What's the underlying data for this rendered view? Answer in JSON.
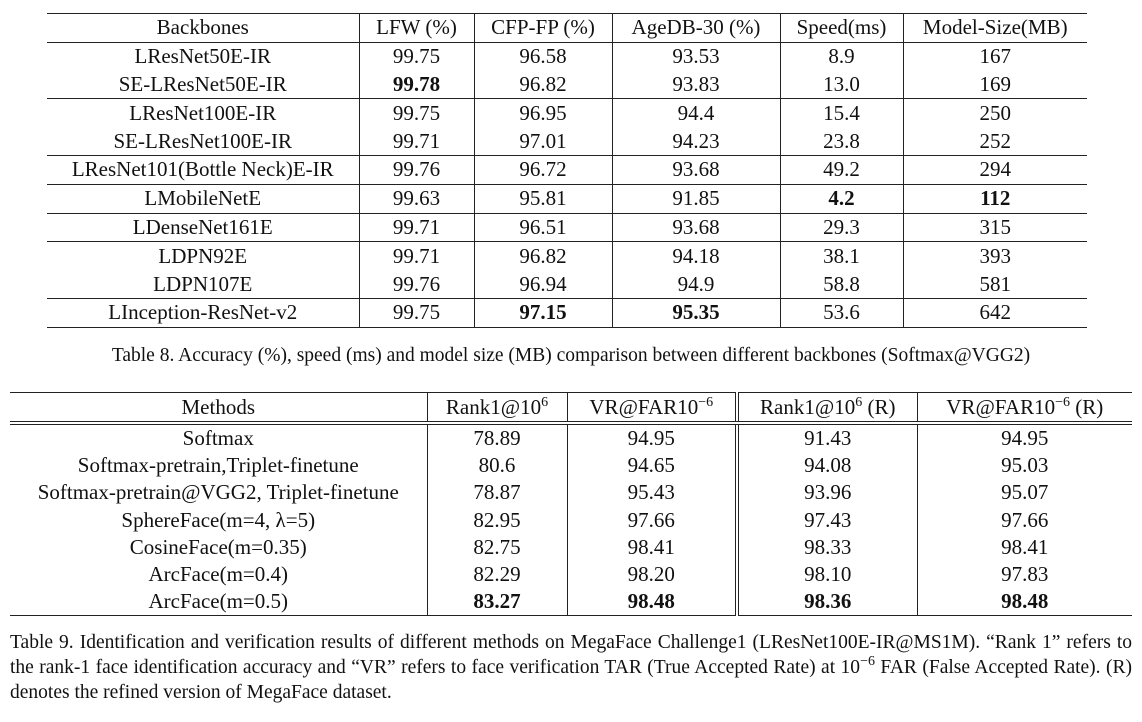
{
  "table8": {
    "header": [
      "Backbones",
      "LFW (%)",
      "CFP-FP (%)",
      "AgeDB-30 (%)",
      "Speed(ms)",
      "Model-Size(MB)"
    ],
    "rows": [
      {
        "cells": [
          "LResNet50E-IR",
          "99.75",
          "96.58",
          "93.53",
          "8.9",
          "167"
        ]
      },
      {
        "cells": [
          "SE-LResNet50E-IR",
          "99.78",
          "96.82",
          "93.83",
          "13.0",
          "169"
        ],
        "bold": [
          1
        ]
      },
      {
        "cells": [
          "LResNet100E-IR",
          "99.75",
          "96.95",
          "94.4",
          "15.4",
          "250"
        ]
      },
      {
        "cells": [
          "SE-LResNet100E-IR",
          "99.71",
          "97.01",
          "94.23",
          "23.8",
          "252"
        ]
      },
      {
        "cells": [
          "LResNet101(Bottle Neck)E-IR",
          "99.76",
          "96.72",
          "93.68",
          "49.2",
          "294"
        ]
      },
      {
        "cells": [
          "LMobileNetE",
          "99.63",
          "95.81",
          "91.85",
          "4.2",
          "112"
        ],
        "bold": [
          4,
          5
        ]
      },
      {
        "cells": [
          "LDenseNet161E",
          "99.71",
          "96.51",
          "93.68",
          "29.3",
          "315"
        ]
      },
      {
        "cells": [
          "LDPN92E",
          "99.71",
          "96.82",
          "94.18",
          "38.1",
          "393"
        ]
      },
      {
        "cells": [
          "LDPN107E",
          "99.76",
          "96.94",
          "94.9",
          "58.8",
          "581"
        ]
      },
      {
        "cells": [
          "LInception-ResNet-v2",
          "99.75",
          "97.15",
          "95.35",
          "53.6",
          "642"
        ],
        "bold": [
          2,
          3
        ]
      }
    ],
    "caption": "Table 8. Accuracy (%), speed (ms) and model size (MB) comparison between different backbones (Softmax@VGG2)"
  },
  "table9": {
    "header": [
      "Methods",
      {
        "text": "Rank1@10",
        "sup": "6"
      },
      {
        "text": "VR@FAR10",
        "sup": "−6"
      },
      {
        "text": "Rank1@10",
        "sup": "6",
        "after": " (R)"
      },
      {
        "text": "VR@FAR10",
        "sup": "−6",
        "after": " (R)"
      }
    ],
    "rows": [
      {
        "cells": [
          "Softmax",
          "78.89",
          "94.95",
          "91.43",
          "94.95"
        ]
      },
      {
        "cells": [
          "Softmax-pretrain,Triplet-finetune",
          "80.6",
          "94.65",
          "94.08",
          "95.03"
        ]
      },
      {
        "cells": [
          "Softmax-pretrain@VGG2, Triplet-finetune",
          "78.87",
          "95.43",
          "93.96",
          "95.07"
        ]
      },
      {
        "cells": [
          "SphereFace(m=4, λ=5)",
          "82.95",
          "97.66",
          "97.43",
          "97.66"
        ]
      },
      {
        "cells": [
          "CosineFace(m=0.35)",
          "82.75",
          "98.41",
          "98.33",
          "98.41"
        ]
      },
      {
        "cells": [
          "ArcFace(m=0.4)",
          "82.29",
          "98.20",
          "98.10",
          "97.83"
        ]
      },
      {
        "cells": [
          "ArcFace(m=0.5)",
          "83.27",
          "98.48",
          "98.36",
          "98.48"
        ],
        "bold": [
          1,
          2,
          3,
          4
        ]
      }
    ],
    "caption": {
      "text": "Table 9. Identification and verification results of different methods on MegaFace Challenge1 (LResNet100E-IR@MS1M). “Rank 1” refers to the rank-1 face identification accuracy and “VR” refers to face verification TAR (True Accepted Rate) at 10",
      "sup": "−6",
      "after": " FAR (False Accepted Rate). (R) denotes the refined version of MegaFace dataset."
    }
  }
}
